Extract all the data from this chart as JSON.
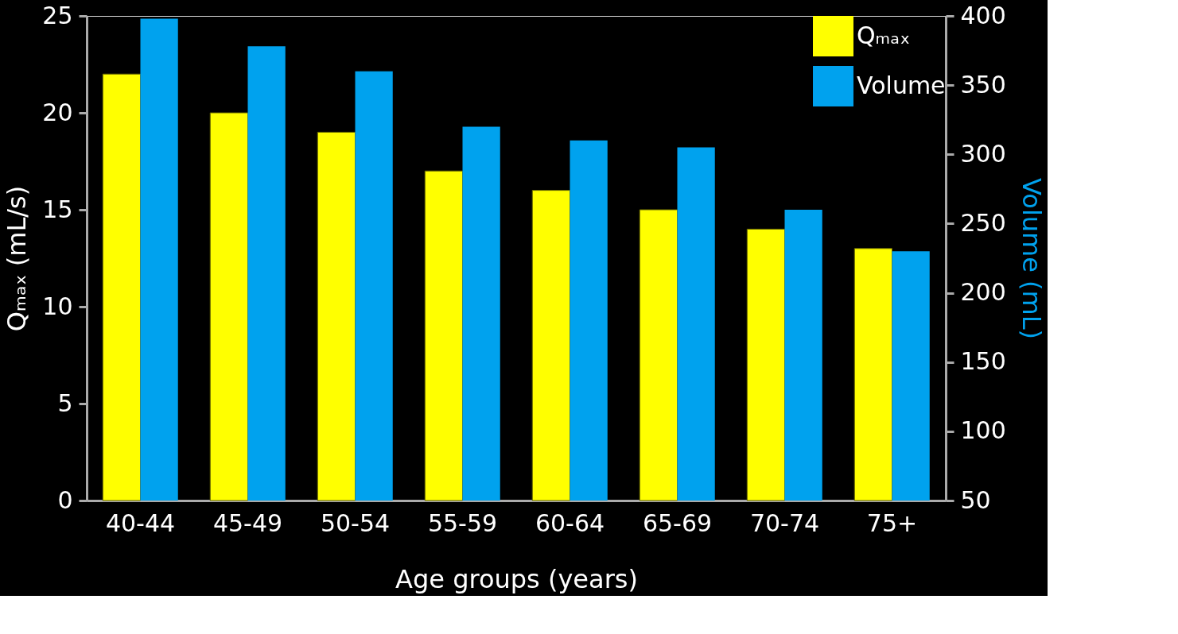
{
  "chart_data": {
    "type": "bar",
    "categories": [
      "40-44",
      "45-49",
      "50-54",
      "55-59",
      "60-64",
      "65-69",
      "70-74",
      "75+"
    ],
    "series": [
      {
        "name": "Qₘₐₓ",
        "color": "#ffff00",
        "values": [
          22,
          20,
          19,
          17,
          16,
          15,
          14,
          13
        ]
      },
      {
        "name": "Volume",
        "color": "#00a2ee",
        "axis": "y2",
        "values": [
          398,
          378,
          360,
          320,
          310,
          305,
          260,
          230
        ]
      }
    ],
    "xlabel": "Age groups (years)",
    "ylabel": "Qₘₐₓ (mL/s)",
    "y2label": "Volume (mL)",
    "ylim": [
      0,
      25
    ],
    "yticks": [
      0,
      5,
      10,
      15,
      20,
      25
    ],
    "y2lim": [
      50,
      400
    ],
    "y2ticks": [
      50,
      100,
      150,
      200,
      250,
      300,
      350,
      400
    ],
    "grid": false,
    "legend": "top right"
  }
}
